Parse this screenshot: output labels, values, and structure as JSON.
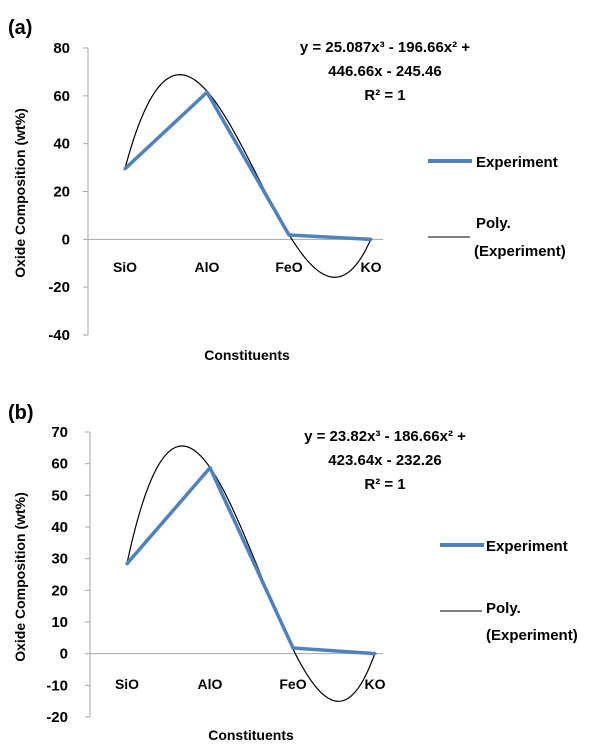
{
  "chart_data": [
    {
      "panel": "(a)",
      "type": "line",
      "categories": [
        "SiO",
        "AlO",
        "FeO",
        "KO"
      ],
      "series": [
        {
          "name": "Experiment",
          "values": [
            29.5,
            61.5,
            1.8,
            0
          ],
          "color": "#4F81BD"
        },
        {
          "name": "Poly. (Experiment)",
          "type": "polynomial-trendline",
          "color": "#000000",
          "coefficients": [
            25.087,
            -196.66,
            446.66,
            -245.46
          ]
        }
      ],
      "xlabel": "Constituents",
      "ylabel": "Oxide Composition (wt%)",
      "ylim": [
        -40,
        80
      ],
      "yticks": [
        -40,
        -20,
        0,
        20,
        40,
        60,
        80
      ],
      "equation": [
        "y = 25.087x³ - 196.66x² +",
        "446.66x - 245.46",
        "R² = 1"
      ],
      "legend_entries": [
        "Experiment",
        "Poly.",
        "(Experiment)"
      ],
      "legend_position": "right",
      "grid": false
    },
    {
      "panel": "(b)",
      "type": "line",
      "categories": [
        "SiO",
        "AlO",
        "FeO",
        "KO"
      ],
      "series": [
        {
          "name": "Experiment",
          "values": [
            28.4,
            58.7,
            1.8,
            0
          ],
          "color": "#4F81BD"
        },
        {
          "name": "Poly. (Experiment)",
          "type": "polynomial-trendline",
          "color": "#000000",
          "coefficients": [
            23.82,
            -186.66,
            423.64,
            -232.26
          ]
        }
      ],
      "xlabel": "Constituents",
      "ylabel": "Oxide Composition (wt%)",
      "ylim": [
        -20,
        70
      ],
      "yticks": [
        -20,
        -10,
        0,
        10,
        20,
        30,
        40,
        50,
        60,
        70
      ],
      "equation": [
        "y = 23.82x³ - 186.66x² +",
        "423.64x - 232.26",
        "R² = 1"
      ],
      "legend_entries": [
        "Experiment",
        "Poly.",
        "(Experiment)"
      ],
      "legend_position": "right",
      "grid": false
    }
  ]
}
